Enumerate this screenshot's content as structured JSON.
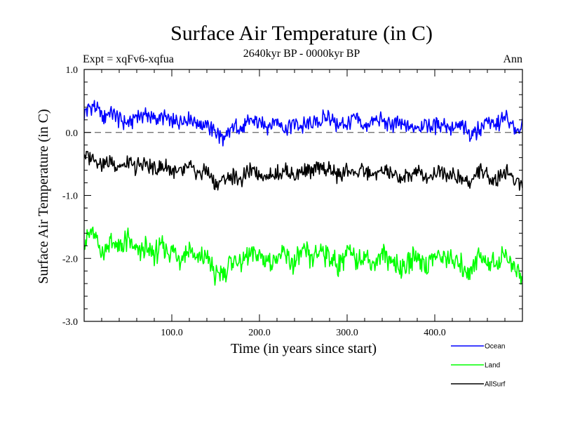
{
  "chart_data": {
    "type": "line",
    "title": "Surface Air Temperature (in C)",
    "subtitle": "2640kyr BP - 0000kyr BP",
    "experiment": "Expt = xqFv6-xqfua",
    "period": "Ann",
    "xlabel": "Time (in years since start)",
    "ylabel": "Surface Air Temperature (in C)",
    "xlim": [
      0,
      500
    ],
    "ylim": [
      -3.0,
      1.0
    ],
    "xticks": [
      100,
      200,
      300,
      400
    ],
    "xtick_labels": [
      "100.0",
      "200.0",
      "300.0",
      "400.0"
    ],
    "yticks": [
      1.0,
      0.0,
      -1.0,
      -2.0,
      -3.0
    ],
    "ytick_labels": [
      "1.0",
      "0.0",
      "-1.0",
      "-2.0",
      "-3.0"
    ],
    "reference_line": 0.0,
    "x": [
      0,
      10,
      20,
      30,
      40,
      50,
      60,
      70,
      80,
      90,
      100,
      110,
      120,
      130,
      140,
      150,
      160,
      170,
      180,
      190,
      200,
      210,
      220,
      230,
      240,
      250,
      260,
      270,
      280,
      290,
      300,
      310,
      320,
      330,
      340,
      350,
      360,
      370,
      380,
      390,
      400,
      410,
      420,
      430,
      440,
      450,
      460,
      470,
      480,
      490,
      500
    ],
    "series": [
      {
        "name": "Ocean",
        "color": "#0000ff",
        "values": [
          0.3,
          0.45,
          0.25,
          0.3,
          0.2,
          0.15,
          0.25,
          0.3,
          0.2,
          0.25,
          0.15,
          0.2,
          0.25,
          0.15,
          0.1,
          0.0,
          -0.15,
          0.1,
          0.05,
          0.2,
          0.15,
          0.1,
          0.2,
          0.05,
          0.15,
          0.1,
          0.15,
          0.2,
          0.25,
          0.1,
          0.15,
          0.2,
          0.1,
          0.15,
          0.2,
          0.1,
          0.15,
          0.05,
          0.1,
          0.15,
          0.1,
          0.15,
          0.05,
          0.1,
          0.0,
          0.05,
          0.2,
          0.1,
          0.25,
          0.05,
          0.1
        ]
      },
      {
        "name": "Land",
        "color": "#00ff00",
        "values": [
          -1.7,
          -1.6,
          -1.9,
          -1.75,
          -1.85,
          -1.7,
          -1.9,
          -1.85,
          -1.95,
          -1.8,
          -1.9,
          -2.0,
          -1.85,
          -2.05,
          -1.95,
          -2.3,
          -2.2,
          -2.0,
          -2.1,
          -1.9,
          -1.95,
          -2.05,
          -2.0,
          -1.95,
          -2.1,
          -1.9,
          -2.0,
          -1.85,
          -2.0,
          -2.1,
          -1.9,
          -2.05,
          -1.95,
          -2.1,
          -1.95,
          -2.0,
          -2.15,
          -2.05,
          -1.95,
          -2.1,
          -2.0,
          -1.95,
          -2.05,
          -2.1,
          -2.2,
          -1.95,
          -2.05,
          -2.1,
          -1.9,
          -2.15,
          -2.3
        ]
      },
      {
        "name": "AllSurf",
        "color": "#000000",
        "values": [
          -0.35,
          -0.4,
          -0.5,
          -0.45,
          -0.55,
          -0.5,
          -0.55,
          -0.5,
          -0.6,
          -0.55,
          -0.6,
          -0.65,
          -0.55,
          -0.65,
          -0.6,
          -0.85,
          -0.75,
          -0.7,
          -0.75,
          -0.6,
          -0.65,
          -0.7,
          -0.65,
          -0.6,
          -0.7,
          -0.6,
          -0.65,
          -0.55,
          -0.6,
          -0.7,
          -0.6,
          -0.65,
          -0.6,
          -0.7,
          -0.6,
          -0.65,
          -0.75,
          -0.7,
          -0.6,
          -0.7,
          -0.65,
          -0.6,
          -0.7,
          -0.75,
          -0.8,
          -0.6,
          -0.7,
          -0.75,
          -0.6,
          -0.75,
          -0.8
        ]
      }
    ],
    "legend": {
      "placement": "bottom-right",
      "entries": [
        "Ocean",
        "Land",
        "AllSurf"
      ]
    }
  }
}
